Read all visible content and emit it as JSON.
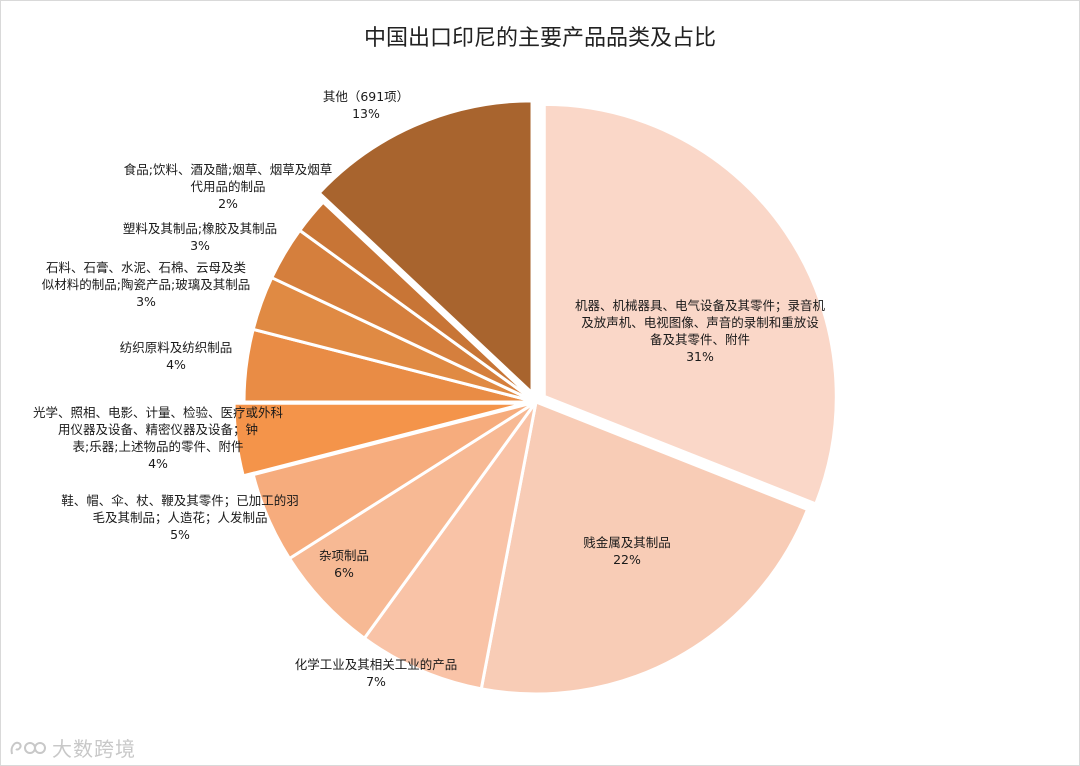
{
  "chart_data": {
    "type": "pie",
    "title": "中国出口印尼的主要产品品类及占比",
    "slices": [
      {
        "label": "机器、机械器具、电气设备及其零件；录音机及放声机、电视图像、声音的录制和重放设备及其零件、附件",
        "value": 31,
        "pct_label": "31%",
        "color": "#FAD7C8",
        "explode": true
      },
      {
        "label": "贱金属及其制品",
        "value": 22,
        "pct_label": "22%",
        "color": "#F8CCB6",
        "explode": false
      },
      {
        "label": "化学工业及其相关工业的产品",
        "value": 7,
        "pct_label": "7%",
        "color": "#F9C3A7",
        "explode": false
      },
      {
        "label": "杂项制品",
        "value": 6,
        "pct_label": "6%",
        "color": "#F7B994",
        "explode": false
      },
      {
        "label": "鞋、帽、伞、杖、鞭及其零件；已加工的羽毛及其制品；人造花；人发制品",
        "value": 5,
        "pct_label": "5%",
        "color": "#F6AC7D",
        "explode": false
      },
      {
        "label": "光学、照相、电影、计量、检验、医疗或外科用仪器及设备、精密仪器及设备；钟表;乐器;上述物品的零件、附件",
        "value": 4,
        "pct_label": "4%",
        "color": "#F4944A",
        "explode": true
      },
      {
        "label": "纺织原料及纺织制品",
        "value": 4,
        "pct_label": "4%",
        "color": "#E98C45",
        "explode": false
      },
      {
        "label": "石料、石膏、水泥、石棉、云母及类似材料的制品;陶瓷产品;玻璃及其制品",
        "value": 3,
        "pct_label": "3%",
        "color": "#E08A43",
        "explode": false
      },
      {
        "label": "塑料及其制品;橡胶及其制品",
        "value": 3,
        "pct_label": "3%",
        "color": "#D57F3D",
        "explode": false
      },
      {
        "label": "食品;饮料、酒及醋;烟草、烟草及烟草代用品的制品",
        "value": 2,
        "pct_label": "2%",
        "color": "#C87536",
        "explode": false
      },
      {
        "label": "其他（691项）",
        "value": 13,
        "pct_label": "13%",
        "color": "#A8642E",
        "explode": true
      }
    ]
  },
  "watermark": {
    "text": "大数跨境"
  }
}
